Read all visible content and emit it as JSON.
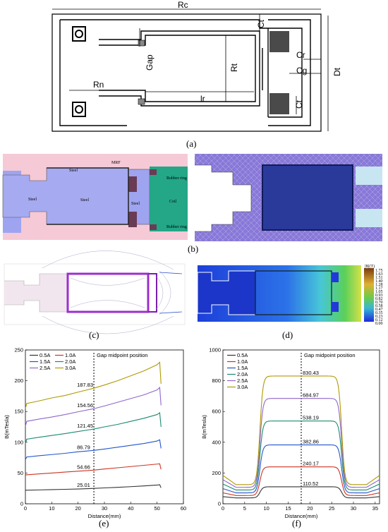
{
  "panel_a": {
    "caption": "(a)",
    "labels": {
      "rc": "Rc",
      "ct_top": "Ct",
      "gap": "Gap",
      "cr": "Cr",
      "cg": "Cg",
      "rt": "Rt",
      "dt": "Dt",
      "rn": "Rn",
      "lr": "lr",
      "ct_bot": "Ct"
    }
  },
  "panel_b": {
    "caption": "(b)",
    "labels": {
      "steel_top": "Steel",
      "mrf": "MRF",
      "steel_mid": "Steel",
      "steel_core": "Steel",
      "steel_bot": "Steel",
      "rubber_top": "Rubber ring",
      "coil": "Coil",
      "rubber_bot": "Rubber ring"
    }
  },
  "panel_c": {
    "caption": "(c)"
  },
  "panel_d": {
    "caption": "(d)",
    "legend_title": "|B|(T)",
    "colorbar_values": [
      "1.75",
      "1.63",
      "1.51",
      "1.40",
      "1.28",
      "1.17",
      "1.05",
      "0.93",
      "0.82",
      "0.70",
      "0.58",
      "0.47",
      "0.35",
      "0.23",
      "0.12",
      "0.00"
    ]
  },
  "chart_data": [
    {
      "type": "line",
      "caption": "(e)",
      "xlabel": "Distance(mm)",
      "ylabel": "B(mTesla)",
      "xlim": [
        0,
        60
      ],
      "ylim": [
        0,
        250
      ],
      "xticks": [
        0,
        10,
        20,
        30,
        40,
        50,
        60
      ],
      "yticks": [
        0,
        50,
        100,
        150,
        200,
        250
      ],
      "marker_x": 26,
      "marker_label": "Gap midpoint position",
      "series": [
        {
          "name": "0.5A",
          "color": "#333333",
          "peak": 25.01,
          "x": [
            0,
            5,
            10,
            15,
            20,
            26,
            30,
            35,
            40,
            45,
            50,
            51,
            51.5
          ],
          "y": [
            22,
            22.5,
            23,
            23.5,
            24,
            25.01,
            25.8,
            26.7,
            27.8,
            29,
            30.5,
            31,
            26
          ]
        },
        {
          "name": "1.0A",
          "color": "#cc3322",
          "peak": 54.66,
          "x": [
            0,
            5,
            10,
            15,
            20,
            26,
            30,
            35,
            40,
            45,
            50,
            51,
            51.5
          ],
          "y": [
            47,
            48.5,
            50,
            51.5,
            53,
            54.66,
            56.5,
            58.5,
            60.5,
            62.5,
            64.5,
            65,
            56
          ]
        },
        {
          "name": "1.5A",
          "color": "#2255cc",
          "peak": 86.79,
          "x": [
            0,
            0.5,
            5,
            10,
            15,
            20,
            26,
            30,
            35,
            40,
            45,
            50,
            51,
            51.5
          ],
          "y": [
            72,
            76,
            78,
            80,
            82,
            84.5,
            86.79,
            89,
            92,
            95,
            98,
            102,
            104,
            90
          ]
        },
        {
          "name": "2.0A",
          "color": "#1a8a70",
          "peak": 121.45,
          "x": [
            0,
            0.5,
            5,
            10,
            15,
            20,
            26,
            30,
            35,
            40,
            45,
            50,
            51,
            51.5
          ],
          "y": [
            98,
            105,
            108,
            111,
            114,
            117.5,
            121.45,
            125,
            129,
            134,
            139,
            145,
            148,
            125
          ]
        },
        {
          "name": "2.5A",
          "color": "#8e66cc",
          "peak": 154.56,
          "x": [
            0,
            0.5,
            5,
            10,
            15,
            20,
            26,
            30,
            35,
            40,
            45,
            50,
            51,
            51.5
          ],
          "y": [
            126,
            134,
            137.5,
            141,
            145,
            149.5,
            154.56,
            159,
            165,
            171,
            177,
            185,
            189,
            160
          ]
        },
        {
          "name": "3.0A",
          "color": "#b09a00",
          "peak": 187.83,
          "x": [
            0,
            0.5,
            5,
            10,
            15,
            20,
            26,
            30,
            35,
            40,
            45,
            50,
            51,
            51.5
          ],
          "y": [
            155,
            163,
            167,
            172,
            176,
            181.5,
            187.83,
            193,
            200,
            208,
            216,
            226,
            230,
            195
          ]
        }
      ]
    },
    {
      "type": "line",
      "caption": "(f)",
      "xlabel": "Distance(mm)",
      "ylabel": "B(mTesla)",
      "xlim": [
        0,
        36
      ],
      "ylim": [
        0,
        1000
      ],
      "xticks": [
        0,
        5,
        10,
        15,
        20,
        25,
        30,
        35
      ],
      "yticks": [
        0,
        200,
        400,
        600,
        800,
        1000
      ],
      "marker_x": 18,
      "marker_label": "Gap midpoint position",
      "series": [
        {
          "name": "0.5A",
          "color": "#333333",
          "peak": 110.52
        },
        {
          "name": "1.0A",
          "color": "#cc3322",
          "peak": 240.17
        },
        {
          "name": "1.5A",
          "color": "#2255cc",
          "peak": 382.86
        },
        {
          "name": "2.0A",
          "color": "#1a8a70",
          "peak": 538.19
        },
        {
          "name": "2.5A",
          "color": "#8e66cc",
          "peak": 684.97
        },
        {
          "name": "3.0A",
          "color": "#b09a00",
          "peak": 830.43
        }
      ]
    }
  ]
}
